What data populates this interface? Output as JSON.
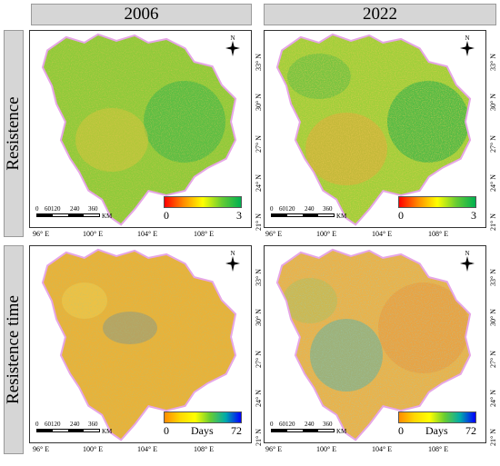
{
  "columns": [
    "2006",
    "2022"
  ],
  "rows": [
    "Resistence",
    "Resistence time"
  ],
  "panels": [
    {
      "year": "2006",
      "metric": "Resistence",
      "legend": {
        "min": "0",
        "max": "3",
        "unit": ""
      },
      "scalebar": {
        "ticks": [
          "0",
          "60120",
          "240",
          "360"
        ],
        "unit": "KM"
      },
      "north": "N",
      "x_ticks": [
        "96° E",
        "100° E",
        "104° E",
        "108° E"
      ],
      "y_ticks": [
        "21° N",
        "24° N",
        "27° N",
        "30° N",
        "33° N"
      ]
    },
    {
      "year": "2022",
      "metric": "Resistence",
      "legend": {
        "min": "0",
        "max": "3",
        "unit": ""
      },
      "scalebar": {
        "ticks": [
          "0",
          "60120",
          "240",
          "360"
        ],
        "unit": "KM"
      },
      "north": "N",
      "x_ticks": [
        "96° E",
        "100° E",
        "104° E",
        "108° E"
      ],
      "y_ticks": [
        "21° N",
        "24° N",
        "27° N",
        "30° N",
        "33° N"
      ]
    },
    {
      "year": "2006",
      "metric": "Resistence time",
      "legend": {
        "min": "0",
        "max": "72",
        "unit": "Days"
      },
      "scalebar": {
        "ticks": [
          "0",
          "60120",
          "240",
          "360"
        ],
        "unit": "KM"
      },
      "north": "N",
      "x_ticks": [
        "96° E",
        "100° E",
        "104° E",
        "108° E"
      ],
      "y_ticks": [
        "21° N",
        "24° N",
        "27° N",
        "30° N",
        "33° N"
      ]
    },
    {
      "year": "2022",
      "metric": "Resistence time",
      "legend": {
        "min": "0",
        "max": "72",
        "unit": "Days"
      },
      "scalebar": {
        "ticks": [
          "0",
          "60120",
          "240",
          "360"
        ],
        "unit": "KM"
      },
      "north": "N",
      "x_ticks": [
        "96° E",
        "100° E",
        "104° E",
        "108° E"
      ],
      "y_ticks": [
        "21° N",
        "24° N",
        "27° N",
        "30° N",
        "33° N"
      ]
    }
  ],
  "colors": {
    "resistance_ramp": [
      "#ff0000",
      "#ff8c00",
      "#ffff00",
      "#66cc33",
      "#00b050"
    ],
    "time_ramp": [
      "#ff8c00",
      "#ffd700",
      "#ffff00",
      "#66cc33",
      "#00aaaa",
      "#0000ff"
    ],
    "boundary_glow": "#e6a6e6"
  }
}
